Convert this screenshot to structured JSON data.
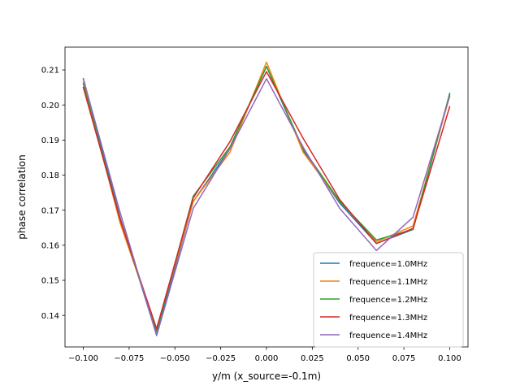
{
  "chart_data": {
    "type": "line",
    "title": "",
    "xlabel": "y/m (x_source=-0.1m)",
    "ylabel": "phase correlation",
    "xlim": [
      -0.11,
      0.11
    ],
    "ylim": [
      0.131,
      0.2165
    ],
    "grid": false,
    "legend_position": "lower-right",
    "x": [
      -0.1,
      -0.08,
      -0.06,
      -0.04,
      -0.02,
      0.0,
      0.02,
      0.04,
      0.06,
      0.08,
      0.1
    ],
    "x_ticks": [
      {
        "value": -0.1,
        "label": "−0.100"
      },
      {
        "value": -0.075,
        "label": "−0.075"
      },
      {
        "value": -0.05,
        "label": "−0.050"
      },
      {
        "value": -0.025,
        "label": "−0.025"
      },
      {
        "value": 0.0,
        "label": "0.000"
      },
      {
        "value": 0.025,
        "label": "0.025"
      },
      {
        "value": 0.05,
        "label": "0.050"
      },
      {
        "value": 0.075,
        "label": "0.075"
      },
      {
        "value": 0.1,
        "label": "0.100"
      }
    ],
    "y_ticks": [
      {
        "value": 0.14,
        "label": "0.14"
      },
      {
        "value": 0.15,
        "label": "0.15"
      },
      {
        "value": 0.16,
        "label": "0.16"
      },
      {
        "value": 0.17,
        "label": "0.17"
      },
      {
        "value": 0.18,
        "label": "0.18"
      },
      {
        "value": 0.19,
        "label": "0.19"
      },
      {
        "value": 0.2,
        "label": "0.20"
      },
      {
        "value": 0.21,
        "label": "0.21"
      }
    ],
    "series": [
      {
        "name": "frequence=1.0MHz",
        "color": "#1f77b4",
        "values": [
          0.2075,
          0.168,
          0.1345,
          0.1725,
          0.1875,
          0.211,
          0.187,
          0.172,
          0.1605,
          0.1645,
          0.203
        ]
      },
      {
        "name": "frequence=1.1MHz",
        "color": "#ff7f0e",
        "values": [
          0.2065,
          0.1665,
          0.136,
          0.1725,
          0.1865,
          0.2122,
          0.1865,
          0.1725,
          0.161,
          0.1655,
          0.2025
        ]
      },
      {
        "name": "frequence=1.2MHz",
        "color": "#2ca02c",
        "values": [
          0.206,
          0.1675,
          0.1355,
          0.174,
          0.188,
          0.211,
          0.1875,
          0.1725,
          0.1615,
          0.1645,
          0.2033
        ]
      },
      {
        "name": "frequence=1.3MHz",
        "color": "#d62728",
        "values": [
          0.205,
          0.1675,
          0.1362,
          0.1735,
          0.1895,
          0.2095,
          0.1905,
          0.173,
          0.1605,
          0.1648,
          0.1995
        ]
      },
      {
        "name": "frequence=1.4MHz",
        "color": "#9467bd",
        "values": [
          0.2075,
          0.1695,
          0.1342,
          0.1705,
          0.1875,
          0.2075,
          0.188,
          0.1705,
          0.1585,
          0.168,
          0.2025
        ]
      }
    ]
  }
}
